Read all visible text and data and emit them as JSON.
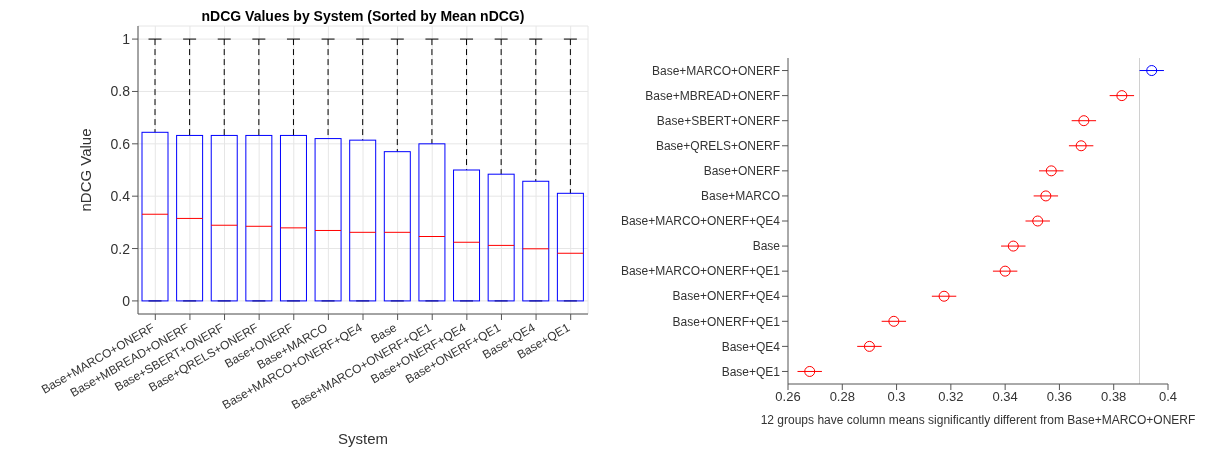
{
  "chart_data": [
    {
      "type": "box",
      "title": "nDCG Values by System (Sorted by Mean nDCG)",
      "xlabel": "System",
      "ylabel": "nDCG Value",
      "categories": [
        "Base+MARCO+ONERF",
        "Base+MBREAD+ONERF",
        "Base+SBERT+ONERF",
        "Base+QRELS+ONERF",
        "Base+ONERF",
        "Base+MARCO",
        "Base+MARCO+ONERF+QE4",
        "Base",
        "Base+MARCO+ONERF+QE1",
        "Base+ONERF+QE4",
        "Base+ONERF+QE1",
        "Base+QE4",
        "Base+QE1"
      ],
      "color": "#0000ff",
      "boxes": [
        {
          "low": 0,
          "q1": 0,
          "median": 0.331,
          "q3": 0.644,
          "high": 1
        },
        {
          "low": 0,
          "q1": 0,
          "median": 0.315,
          "q3": 0.632,
          "high": 1
        },
        {
          "low": 0,
          "q1": 0,
          "median": 0.289,
          "q3": 0.632,
          "high": 1
        },
        {
          "low": 0,
          "q1": 0,
          "median": 0.285,
          "q3": 0.632,
          "high": 1
        },
        {
          "low": 0,
          "q1": 0,
          "median": 0.279,
          "q3": 0.632,
          "high": 1
        },
        {
          "low": 0,
          "q1": 0,
          "median": 0.269,
          "q3": 0.62,
          "high": 1
        },
        {
          "low": 0,
          "q1": 0,
          "median": 0.262,
          "q3": 0.614,
          "high": 1
        },
        {
          "low": 0,
          "q1": 0,
          "median": 0.262,
          "q3": 0.57,
          "high": 1
        },
        {
          "low": 0,
          "q1": 0,
          "median": 0.246,
          "q3": 0.6,
          "high": 1
        },
        {
          "low": 0,
          "q1": 0,
          "median": 0.224,
          "q3": 0.5,
          "high": 1
        },
        {
          "low": 0,
          "q1": 0,
          "median": 0.212,
          "q3": 0.484,
          "high": 1
        },
        {
          "low": 0,
          "q1": 0,
          "median": 0.199,
          "q3": 0.457,
          "high": 1
        },
        {
          "low": 0,
          "q1": 0,
          "median": 0.182,
          "q3": 0.411,
          "high": 1
        }
      ],
      "ylim": [
        -0.05,
        1.05
      ],
      "yticks": [
        0,
        0.2,
        0.4,
        0.6,
        0.8,
        1
      ],
      "grid": true
    },
    {
      "type": "scatter",
      "orientation": "horizontal",
      "xlabel": "12 groups have column means significantly different from Base+MARCO+ONERF",
      "categories": [
        "Base+MARCO+ONERF",
        "Base+MBREAD+ONERF",
        "Base+SBERT+ONERF",
        "Base+QRELS+ONERF",
        "Base+ONERF",
        "Base+MARCO",
        "Base+MARCO+ONERF+QE4",
        "Base",
        "Base+MARCO+ONERF+QE1",
        "Base+ONERF+QE4",
        "Base+ONERF+QE1",
        "Base+QE4",
        "Base+QE1"
      ],
      "values": [
        0.394,
        0.383,
        0.369,
        0.368,
        0.357,
        0.355,
        0.352,
        0.343,
        0.34,
        0.3175,
        0.299,
        0.29,
        0.268
      ],
      "errors": [
        0.0045,
        0.0045,
        0.0045,
        0.0045,
        0.0045,
        0.0045,
        0.0045,
        0.0045,
        0.0045,
        0.0045,
        0.0045,
        0.0045,
        0.0045
      ],
      "colors": [
        "#0000ff",
        "#ff0000",
        "#ff0000",
        "#ff0000",
        "#ff0000",
        "#ff0000",
        "#ff0000",
        "#ff0000",
        "#ff0000",
        "#ff0000",
        "#ff0000",
        "#ff0000",
        "#ff0000"
      ],
      "marker": "circle",
      "xlim": [
        0.26,
        0.4
      ],
      "xticks": [
        0.26,
        0.28,
        0.3,
        0.32,
        0.34,
        0.36,
        0.38,
        0.4
      ],
      "ref_lines": [
        {
          "axis": "x",
          "value": 0.3895,
          "color": "#d0d0d0"
        }
      ]
    }
  ]
}
